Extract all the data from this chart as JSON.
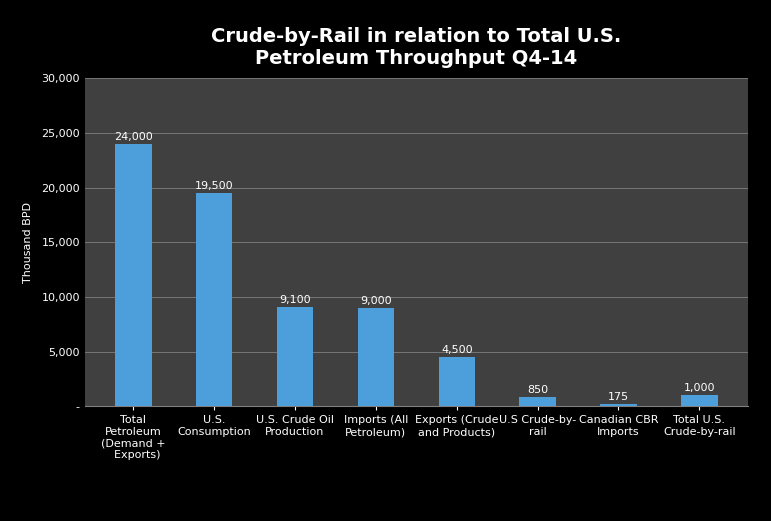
{
  "title": "Crude-by-Rail in relation to Total U.S.\nPetroleum Throughput Q4-14",
  "categories": [
    "Total\nPetroleum\n(Demand +\n  Exports)",
    "U.S.\nConsumption",
    "U.S. Crude Oil\nProduction",
    "Imports (All\nPetroleum)",
    "Exports (Crude\nand Products)",
    "U.S Crude-by-\nrail",
    "Canadian CBR\nImports",
    "Total U.S.\nCrude-by-rail"
  ],
  "values": [
    24000,
    19500,
    9100,
    9000,
    4500,
    850,
    175,
    1000
  ],
  "bar_color": "#4d9fdb",
  "background_color": "#000000",
  "plot_bg_color": "#404040",
  "grid_color": "#7f7f7f",
  "title_color": "#ffffff",
  "label_color": "#ffffff",
  "tick_color": "#ffffff",
  "ylabel": "Thousand BPD",
  "ylim": [
    0,
    30000
  ],
  "yticks": [
    0,
    5000,
    10000,
    15000,
    20000,
    25000,
    30000
  ],
  "ytick_labels": [
    "-",
    "5,000",
    "10,000",
    "15,000",
    "20,000",
    "25,000",
    "30,000"
  ],
  "value_labels": [
    "24,000",
    "19,500",
    "9,100",
    "9,000",
    "4,500",
    "850",
    "175",
    "1,000"
  ],
  "title_fontsize": 14,
  "axis_label_fontsize": 8,
  "tick_label_fontsize": 8,
  "value_label_fontsize": 8,
  "bar_width": 0.45
}
